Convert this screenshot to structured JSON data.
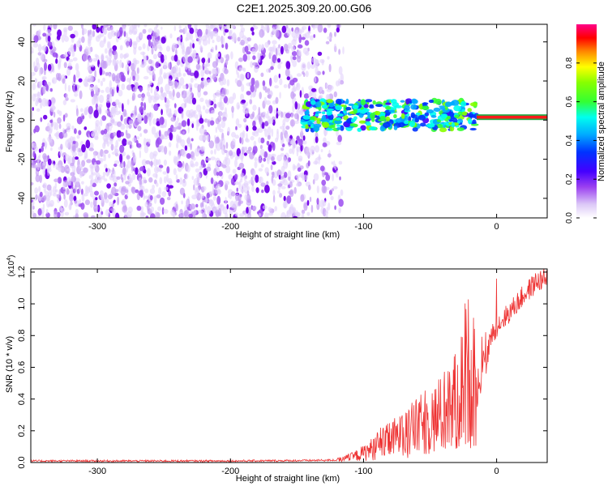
{
  "title": "C2E1.2025.309.20.00.G06",
  "chart_data": [
    {
      "type": "heatmap",
      "xlabel": "Height of straight line (km)",
      "ylabel": "Frequency (Hz)",
      "xlim": [
        -350,
        38
      ],
      "ylim": [
        -50,
        49
      ],
      "xticks": [
        -300,
        -200,
        -100,
        0
      ],
      "yticks": [
        -40,
        -20,
        0,
        20,
        40
      ],
      "colorbar": {
        "label": "Normalized spectral amplitude",
        "range": [
          0,
          1
        ],
        "ticks": [
          0.0,
          0.2,
          0.4,
          0.6,
          0.8
        ]
      },
      "features": {
        "noise_region_x": [
          -350,
          -120
        ],
        "signal_band_x": [
          -145,
          -15
        ],
        "signal_band_y": [
          -5,
          10
        ],
        "tone_x": [
          -15,
          38
        ],
        "tone_y": 1.5
      }
    },
    {
      "type": "line",
      "xlabel": "Height of straight line (km)",
      "ylabel": "SNR (10 * v/v)",
      "multiplier": "(x10^4)",
      "xlim": [
        -350,
        38
      ],
      "ylim": [
        0,
        1.22
      ],
      "xticks": [
        -300,
        -200,
        -100,
        0
      ],
      "yticks": [
        0.0,
        0.2,
        0.4,
        0.6,
        0.8,
        1.0,
        1.2
      ],
      "series": [
        {
          "name": "SNR",
          "color": "#ee3333",
          "x": [
            -350,
            -300,
            -250,
            -200,
            -150,
            -120,
            -110,
            -100,
            -90,
            -80,
            -70,
            -60,
            -50,
            -40,
            -30,
            -25,
            -20,
            -15,
            -12,
            -10,
            -8,
            -5,
            0,
            10,
            20,
            30,
            38
          ],
          "y": [
            0.01,
            0.01,
            0.01,
            0.01,
            0.012,
            0.015,
            0.03,
            0.06,
            0.1,
            0.14,
            0.18,
            0.22,
            0.26,
            0.3,
            0.38,
            0.5,
            0.6,
            0.4,
            0.5,
            0.68,
            0.6,
            0.78,
            0.86,
            0.95,
            1.05,
            1.14,
            1.16
          ]
        }
      ]
    }
  ]
}
